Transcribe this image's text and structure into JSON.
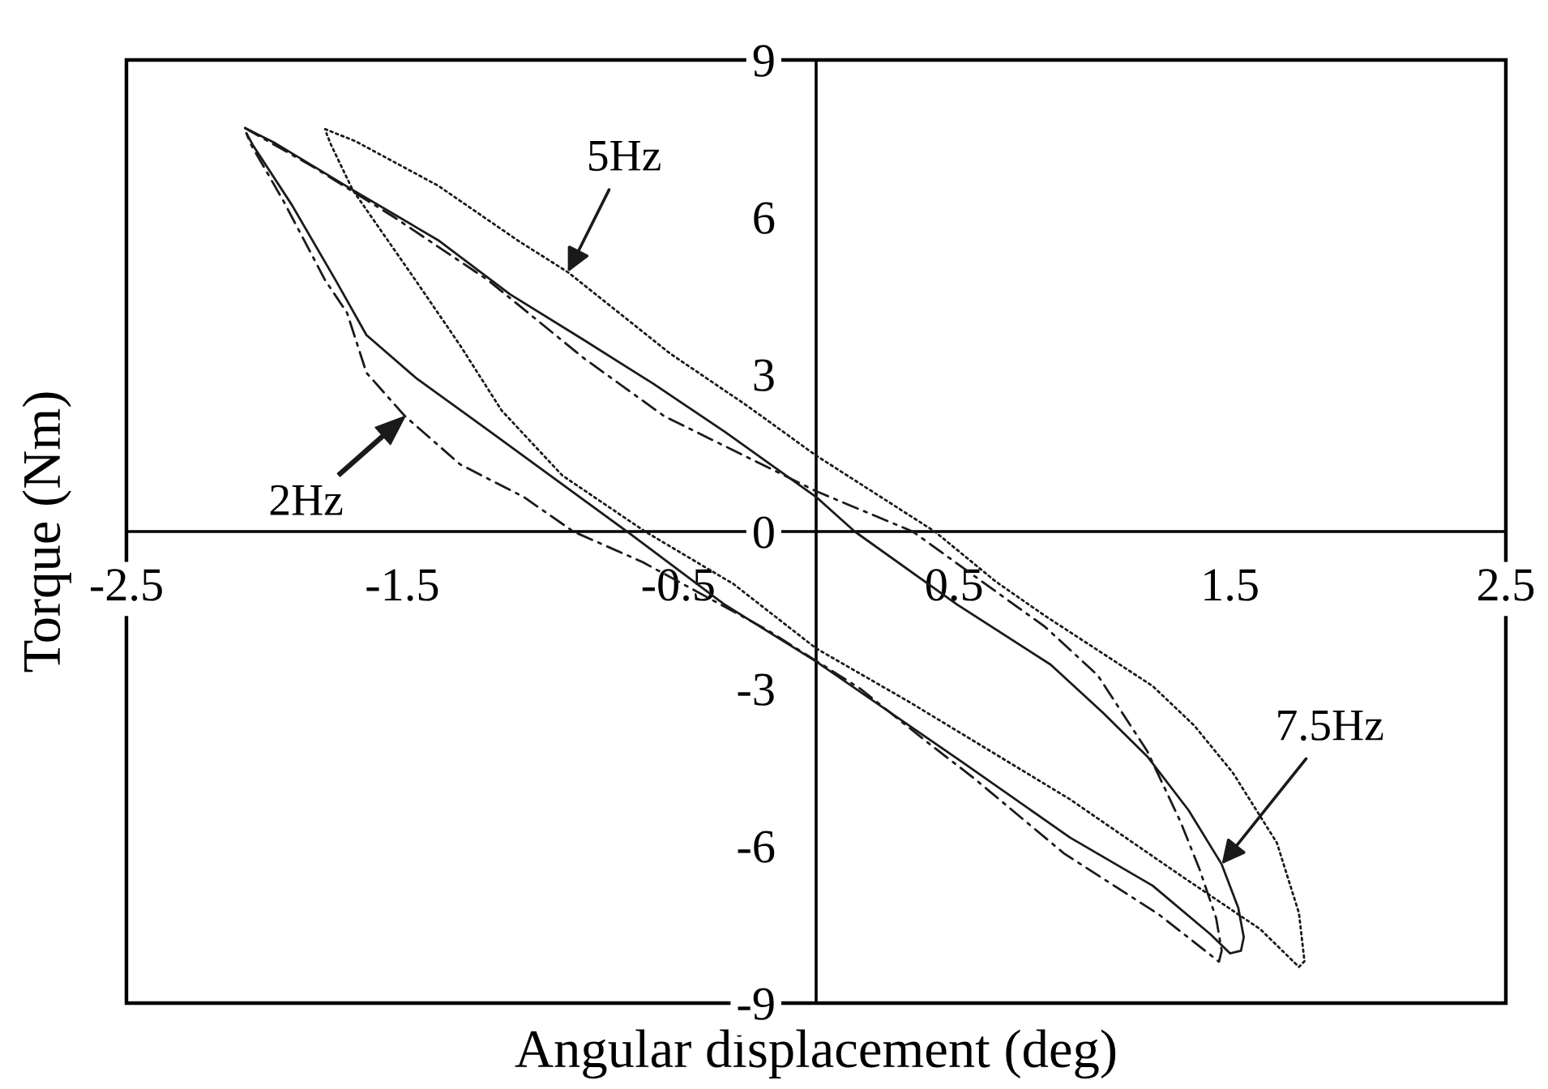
{
  "chart_data": {
    "type": "line",
    "xlabel": "Angular displacement (deg)",
    "ylabel": "Torque (Nm)",
    "xlim": [
      -2.5,
      2.5
    ],
    "ylim": [
      -9,
      9
    ],
    "xticks": [
      -2.5,
      -1.5,
      -0.5,
      0.5,
      1.5,
      2.5
    ],
    "yticks": [
      -9,
      -6,
      -3,
      0,
      3,
      6,
      9
    ],
    "series": [
      {
        "name": "2Hz",
        "color": "#1a1a1a",
        "line_style": "dashdot",
        "x": [
          -2.07,
          -1.82,
          -1.53,
          -1.19,
          -0.84,
          -0.55,
          -0.3,
          0,
          0.35,
          0.6,
          0.83,
          1.02,
          1.2,
          1.32,
          1.39,
          1.45,
          1.47,
          1.46,
          1.41,
          1.24,
          0.9,
          0.57,
          0.41,
          0.16,
          -0.18,
          -0.63,
          -0.88,
          -1.06,
          -1.29,
          -1.49,
          -1.63,
          -1.7,
          -1.78,
          -1.93,
          -2.05,
          -2.065
        ],
        "values": [
          7.7,
          6.95,
          6.0,
          4.8,
          3.3,
          2.2,
          1.55,
          0.77,
          0,
          -0.95,
          -1.82,
          -2.74,
          -4.19,
          -5.53,
          -6.45,
          -7.38,
          -8.0,
          -8.21,
          -8.0,
          -7.3,
          -6.15,
          -4.7,
          -4.05,
          -3.0,
          -1.87,
          -0.58,
          0,
          0.66,
          1.28,
          2.2,
          3.03,
          4.17,
          4.8,
          6.3,
          7.4,
          7.6
        ]
      },
      {
        "name": "5Hz",
        "color": "#1a1a1a",
        "line_style": "dotted",
        "x": [
          -1.78,
          -1.67,
          -1.37,
          -1.08,
          -0.9,
          -0.53,
          -0.25,
          0,
          0.43,
          0.65,
          0.83,
          1.04,
          1.22,
          1.37,
          1.51,
          1.67,
          1.75,
          1.77,
          1.75,
          1.61,
          1.32,
          0.92,
          0.34,
          0,
          -0.3,
          -0.62,
          -0.92,
          -1.14,
          -1.29,
          -1.45,
          -1.68,
          -1.76,
          -1.775
        ],
        "values": [
          7.68,
          7.45,
          6.6,
          5.55,
          4.95,
          3.4,
          2.4,
          1.45,
          0,
          -0.95,
          -1.61,
          -2.33,
          -2.95,
          -3.7,
          -4.6,
          -5.94,
          -7.28,
          -8.2,
          -8.31,
          -7.59,
          -6.56,
          -5.11,
          -3.26,
          -2.23,
          -1.0,
          0,
          1.07,
          2.31,
          3.55,
          4.78,
          6.52,
          7.4,
          7.6
        ]
      },
      {
        "name": "7.5Hz",
        "color": "#1a1a1a",
        "line_style": "solid",
        "x": [
          -2.07,
          -1.96,
          -1.68,
          -1.37,
          -1.11,
          -0.84,
          -0.59,
          -0.33,
          0,
          0.14,
          0.51,
          0.85,
          1.04,
          1.2,
          1.35,
          1.47,
          1.53,
          1.55,
          1.54,
          1.5,
          1.43,
          1.22,
          0.92,
          0.53,
          0,
          -0.33,
          -0.67,
          -1.18,
          -1.45,
          -1.63,
          -1.74,
          -1.9,
          -2.04,
          -2.065
        ],
        "values": [
          7.7,
          7.41,
          6.52,
          5.56,
          4.53,
          3.65,
          2.82,
          1.9,
          0.66,
          0,
          -1.39,
          -2.54,
          -3.46,
          -4.29,
          -5.32,
          -6.35,
          -7.18,
          -7.74,
          -8.0,
          -8.05,
          -7.69,
          -6.76,
          -5.84,
          -4.4,
          -2.48,
          -1.4,
          -0.06,
          1.9,
          2.93,
          3.75,
          4.78,
          6.23,
          7.36,
          7.6
        ]
      }
    ]
  }
}
